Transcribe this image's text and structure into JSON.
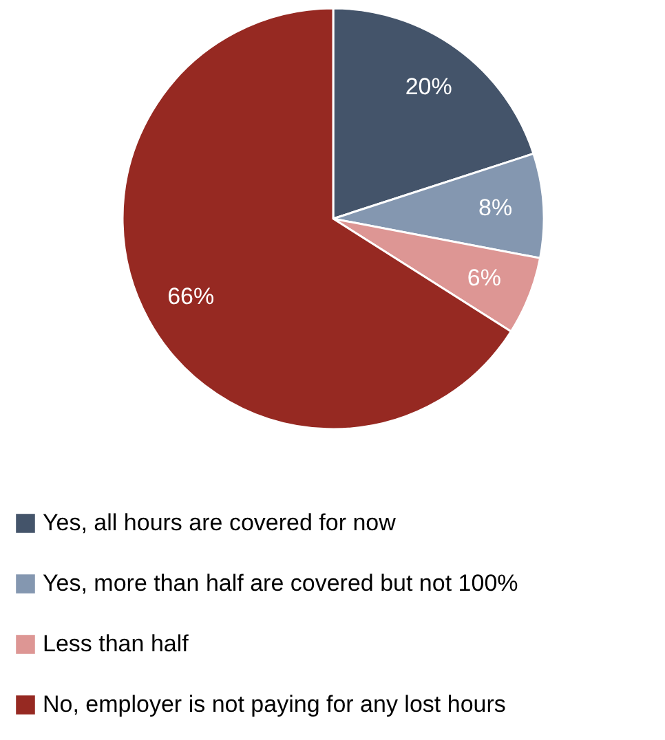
{
  "chart_data": {
    "type": "pie",
    "categories": [
      "Yes, all hours are covered for now",
      "Yes, more than half are covered but not 100%",
      "Less than half",
      "No, employer is not paying for any lost hours"
    ],
    "values": [
      20,
      8,
      6,
      66
    ],
    "colors": [
      "#44546a",
      "#8497b0",
      "#dd9694",
      "#962922"
    ],
    "value_labels": [
      "20%",
      "8%",
      "6%",
      "66%"
    ],
    "legend": "bottom"
  }
}
